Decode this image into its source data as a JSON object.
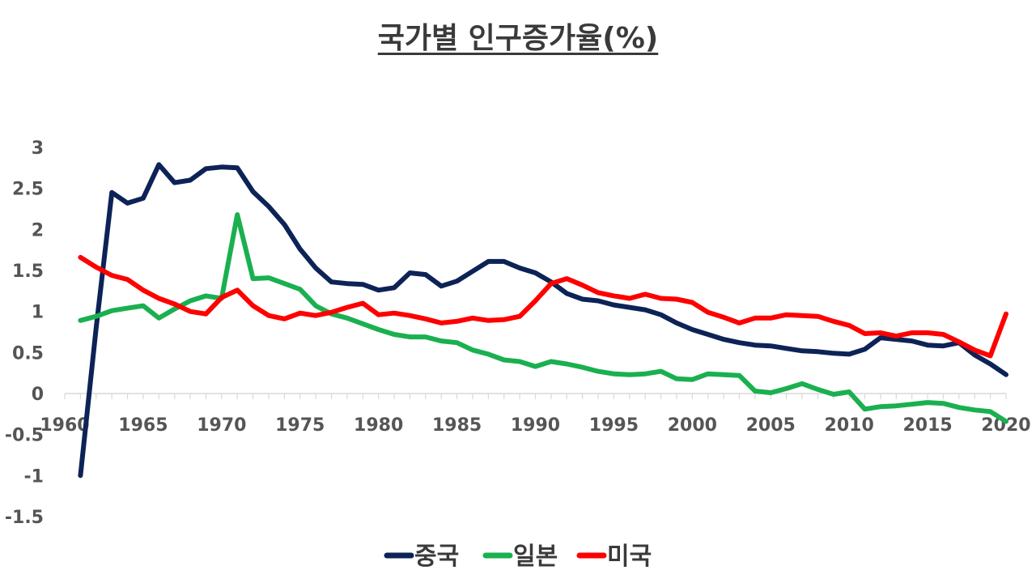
{
  "chart_data": {
    "type": "line",
    "title": "국가별 인구증가율(%)",
    "xlabel": "",
    "ylabel": "",
    "xlim": [
      1960,
      2020
    ],
    "ylim": [
      -1.5,
      3
    ],
    "x_ticks": [
      1960,
      1965,
      1970,
      1975,
      1980,
      1985,
      1990,
      1995,
      2000,
      2005,
      2010,
      2015,
      2020
    ],
    "y_ticks": [
      3,
      2.5,
      2,
      1.5,
      1,
      0.5,
      0,
      -0.5,
      -1,
      -1.5
    ],
    "grid": false,
    "legend_position": "bottom",
    "series": [
      {
        "name": "중국",
        "color": "#0d2357",
        "x": [
          1961,
          1962,
          1963,
          1964,
          1965,
          1966,
          1967,
          1968,
          1969,
          1970,
          1971,
          1972,
          1973,
          1974,
          1975,
          1976,
          1977,
          1978,
          1979,
          1980,
          1981,
          1982,
          1983,
          1984,
          1985,
          1986,
          1987,
          1988,
          1989,
          1990,
          1991,
          1992,
          1993,
          1994,
          1995,
          1996,
          1997,
          1998,
          1999,
          2000,
          2001,
          2002,
          2003,
          2004,
          2005,
          2006,
          2007,
          2008,
          2009,
          2010,
          2011,
          2012,
          2013,
          2014,
          2015,
          2016,
          2017,
          2018,
          2019,
          2020
        ],
        "values": [
          -1.0,
          0.8,
          2.45,
          2.32,
          2.38,
          2.79,
          2.57,
          2.6,
          2.74,
          2.76,
          2.75,
          2.46,
          2.28,
          2.06,
          1.76,
          1.53,
          1.36,
          1.34,
          1.33,
          1.26,
          1.29,
          1.47,
          1.45,
          1.31,
          1.37,
          1.49,
          1.61,
          1.61,
          1.53,
          1.47,
          1.36,
          1.22,
          1.15,
          1.13,
          1.08,
          1.05,
          1.02,
          0.96,
          0.86,
          0.78,
          0.72,
          0.66,
          0.62,
          0.59,
          0.58,
          0.55,
          0.52,
          0.51,
          0.49,
          0.48,
          0.54,
          0.68,
          0.66,
          0.64,
          0.59,
          0.58,
          0.62,
          0.47,
          0.36,
          0.23
        ]
      },
      {
        "name": "일본",
        "color": "#1ab04f",
        "x": [
          1961,
          1962,
          1963,
          1964,
          1965,
          1966,
          1967,
          1968,
          1969,
          1970,
          1971,
          1972,
          1973,
          1974,
          1975,
          1976,
          1977,
          1978,
          1979,
          1980,
          1981,
          1982,
          1983,
          1984,
          1985,
          1986,
          1987,
          1988,
          1989,
          1990,
          1991,
          1992,
          1993,
          1994,
          1995,
          1996,
          1997,
          1998,
          1999,
          2000,
          2001,
          2002,
          2003,
          2004,
          2005,
          2006,
          2007,
          2008,
          2009,
          2010,
          2011,
          2012,
          2013,
          2014,
          2015,
          2016,
          2017,
          2018,
          2019,
          2020
        ],
        "values": [
          0.89,
          0.94,
          1.01,
          1.04,
          1.07,
          0.92,
          1.03,
          1.13,
          1.19,
          1.16,
          2.18,
          1.4,
          1.41,
          1.34,
          1.27,
          1.07,
          0.97,
          0.92,
          0.85,
          0.78,
          0.72,
          0.69,
          0.69,
          0.64,
          0.62,
          0.53,
          0.48,
          0.41,
          0.39,
          0.33,
          0.39,
          0.36,
          0.32,
          0.27,
          0.24,
          0.23,
          0.24,
          0.27,
          0.18,
          0.17,
          0.24,
          0.23,
          0.22,
          0.03,
          0.01,
          0.06,
          0.12,
          0.05,
          -0.01,
          0.02,
          -0.19,
          -0.16,
          -0.15,
          -0.13,
          -0.11,
          -0.12,
          -0.17,
          -0.2,
          -0.22,
          -0.34
        ]
      },
      {
        "name": "미국",
        "color": "#ff0000",
        "x": [
          1961,
          1962,
          1963,
          1964,
          1965,
          1966,
          1967,
          1968,
          1969,
          1970,
          1971,
          1972,
          1973,
          1974,
          1975,
          1976,
          1977,
          1978,
          1979,
          1980,
          1981,
          1982,
          1983,
          1984,
          1985,
          1986,
          1987,
          1988,
          1989,
          1990,
          1991,
          1992,
          1993,
          1994,
          1995,
          1996,
          1997,
          1998,
          1999,
          2000,
          2001,
          2002,
          2003,
          2004,
          2005,
          2006,
          2007,
          2008,
          2009,
          2010,
          2011,
          2012,
          2013,
          2014,
          2015,
          2016,
          2017,
          2018,
          2019,
          2020
        ],
        "values": [
          1.66,
          1.54,
          1.44,
          1.39,
          1.26,
          1.16,
          1.09,
          1.0,
          0.97,
          1.17,
          1.26,
          1.07,
          0.95,
          0.91,
          0.98,
          0.95,
          0.99,
          1.05,
          1.1,
          0.96,
          0.98,
          0.95,
          0.91,
          0.86,
          0.88,
          0.92,
          0.89,
          0.9,
          0.94,
          1.13,
          1.34,
          1.4,
          1.32,
          1.23,
          1.19,
          1.16,
          1.21,
          1.16,
          1.15,
          1.11,
          0.99,
          0.93,
          0.86,
          0.92,
          0.92,
          0.96,
          0.95,
          0.94,
          0.88,
          0.83,
          0.73,
          0.74,
          0.7,
          0.74,
          0.74,
          0.72,
          0.63,
          0.53,
          0.46,
          0.97
        ]
      }
    ]
  }
}
